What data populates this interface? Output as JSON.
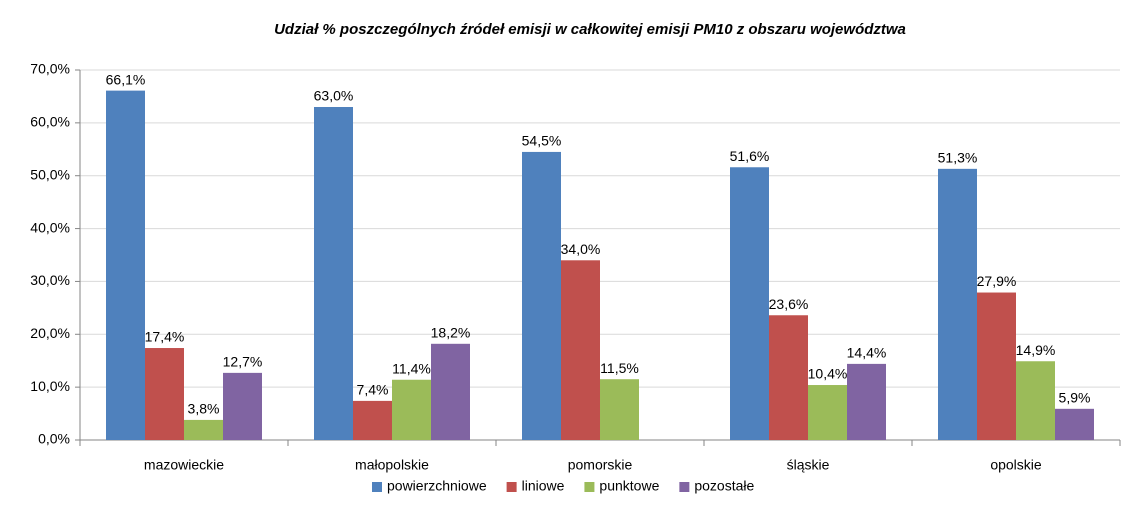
{
  "chart_data": {
    "type": "bar",
    "title": "Udział % poszczególnych źródeł emisji w całkowitej emisji PM10 z obszaru województwa",
    "categories": [
      "mazowieckie",
      "małopolskie",
      "pomorskie",
      "śląskie",
      "opolskie"
    ],
    "series": [
      {
        "name": "powierzchniowe",
        "color": "#4f81bd",
        "values": [
          66.1,
          63.0,
          54.5,
          51.6,
          51.3
        ],
        "value_labels": [
          "66,1%",
          "63,0%",
          "54,5%",
          "51,6%",
          "51,3%"
        ]
      },
      {
        "name": "liniowe",
        "color": "#c0504d",
        "values": [
          17.4,
          7.4,
          34.0,
          23.6,
          27.9
        ],
        "value_labels": [
          "17,4%",
          "7,4%",
          "34,0%",
          "23,6%",
          "27,9%"
        ]
      },
      {
        "name": "punktowe",
        "color": "#9bbb59",
        "values": [
          3.8,
          11.4,
          11.5,
          10.4,
          14.9
        ],
        "value_labels": [
          "3,8%",
          "11,4%",
          "11,5%",
          "10,4%",
          "14,9%"
        ]
      },
      {
        "name": "pozostałe",
        "color": "#8064a2",
        "values": [
          12.7,
          18.2,
          null,
          14.4,
          5.9
        ],
        "value_labels": [
          "12,7%",
          "18,2%",
          null,
          "14,4%",
          "5,9%"
        ]
      }
    ],
    "ylim": [
      0,
      70
    ],
    "yticks": [
      {
        "value": 0,
        "label": "0,0%"
      },
      {
        "value": 10,
        "label": "10,0%"
      },
      {
        "value": 20,
        "label": "20,0%"
      },
      {
        "value": 30,
        "label": "30,0%"
      },
      {
        "value": 40,
        "label": "40,0%"
      },
      {
        "value": 50,
        "label": "50,0%"
      },
      {
        "value": 60,
        "label": "60,0%"
      },
      {
        "value": 70,
        "label": "70,0%"
      }
    ],
    "grid": true,
    "legend": "bottom"
  }
}
